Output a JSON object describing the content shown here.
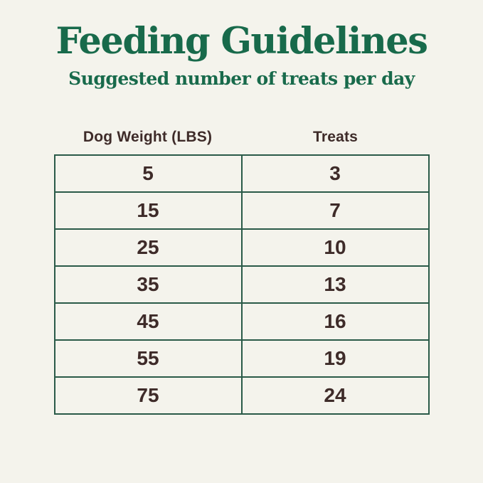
{
  "page": {
    "title": "Feeding Guidelines",
    "subtitle": "Suggested number of treats per day"
  },
  "colors": {
    "background": "#f4f3ec",
    "heading_green": "#186a4b",
    "table_border_green": "#2a5a48",
    "text_brown": "#3e2b29"
  },
  "chart_data": {
    "type": "table",
    "title": "Feeding Guidelines",
    "subtitle": "Suggested number of treats per day",
    "columns": [
      "Dog Weight (LBS)",
      "Treats"
    ],
    "rows": [
      {
        "weight": "5",
        "treats": "3"
      },
      {
        "weight": "15",
        "treats": "7"
      },
      {
        "weight": "25",
        "treats": "10"
      },
      {
        "weight": "35",
        "treats": "13"
      },
      {
        "weight": "45",
        "treats": "16"
      },
      {
        "weight": "55",
        "treats": "19"
      },
      {
        "weight": "75",
        "treats": "24"
      }
    ],
    "layout": {
      "columns_equal_width": true,
      "headers_outside_border": true,
      "grid": "collapsed single borders"
    }
  }
}
